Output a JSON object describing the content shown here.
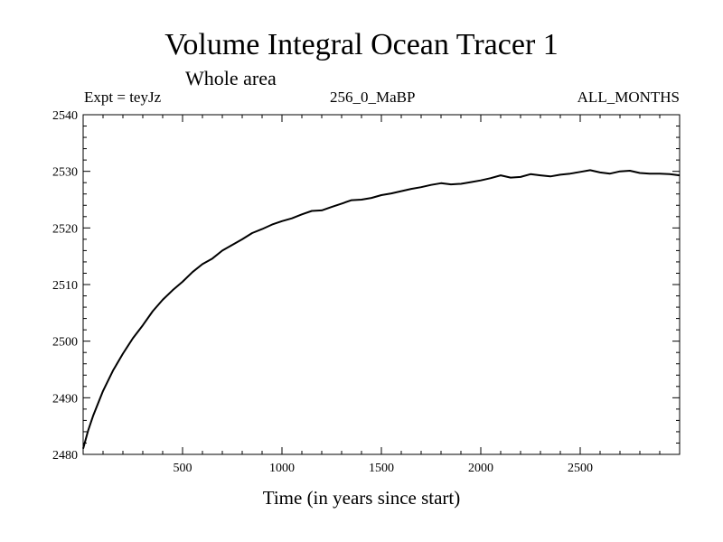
{
  "header": {
    "title": "Volume Integral Ocean Tracer 1",
    "subtitle": "Whole area",
    "expt": "Expt = teyJz",
    "run": "256_0_MaBP",
    "months": "ALL_MONTHS"
  },
  "chart_data": {
    "type": "line",
    "title": "Volume Integral Ocean Tracer 1",
    "subtitle": "Whole area",
    "xlabel": "Time (in years since start)",
    "ylabel": "",
    "xlim": [
      0,
      3000
    ],
    "ylim": [
      2480,
      2540
    ],
    "xticks": [
      500,
      1000,
      1500,
      2000,
      2500
    ],
    "yticks": [
      2480,
      2490,
      2500,
      2510,
      2520,
      2530,
      2540
    ],
    "grid": false,
    "series": [
      {
        "color": "#000000",
        "x": [
          0,
          25,
          50,
          100,
          150,
          200,
          250,
          300,
          350,
          400,
          450,
          500,
          550,
          600,
          650,
          700,
          750,
          800,
          850,
          900,
          950,
          1000,
          1050,
          1100,
          1150,
          1200,
          1250,
          1300,
          1350,
          1400,
          1450,
          1500,
          1550,
          1600,
          1650,
          1700,
          1750,
          1800,
          1850,
          1900,
          1950,
          2000,
          2050,
          2100,
          2150,
          2200,
          2250,
          2300,
          2350,
          2400,
          2450,
          2500,
          2550,
          2600,
          2650,
          2700,
          2750,
          2800,
          2850,
          2900,
          2950,
          3000
        ],
        "values": [
          2481.0,
          2484.2,
          2486.8,
          2491.2,
          2494.8,
          2497.8,
          2500.5,
          2502.8,
          2505.3,
          2507.3,
          2509.0,
          2510.5,
          2512.2,
          2513.6,
          2514.6,
          2516.0,
          2517.0,
          2518.0,
          2519.1,
          2519.8,
          2520.6,
          2521.2,
          2521.7,
          2522.4,
          2523.0,
          2523.1,
          2523.7,
          2524.3,
          2524.9,
          2525.0,
          2525.3,
          2525.8,
          2526.1,
          2526.5,
          2526.9,
          2527.2,
          2527.6,
          2527.9,
          2527.7,
          2527.8,
          2528.1,
          2528.4,
          2528.8,
          2529.3,
          2528.9,
          2529.0,
          2529.5,
          2529.3,
          2529.1,
          2529.4,
          2529.6,
          2529.9,
          2530.2,
          2529.8,
          2529.6,
          2530.0,
          2530.1,
          2529.7,
          2529.6,
          2529.6,
          2529.5,
          2529.3
        ]
      }
    ]
  }
}
